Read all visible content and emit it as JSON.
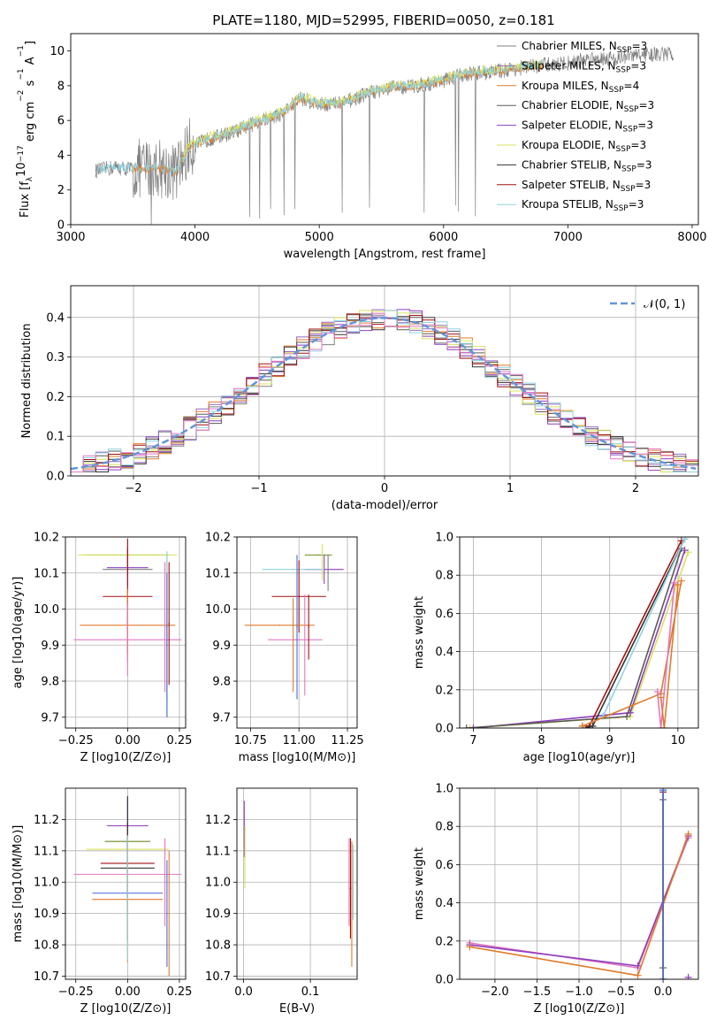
{
  "colors": {
    "Chabrier MILES": "#808080",
    "Salpeter MILES": "#9467bd",
    "Kroupa MILES": "#e07a2a",
    "Chabrier ELODIE": "#5a5a5a",
    "Salpeter ELODIE": "#8e3fbf",
    "Kroupa ELODIE": "#d9e35a",
    "Chabrier STELIB": "#333333",
    "Salpeter STELIB": "#a01010",
    "Kroupa STELIB": "#8fd3e0",
    "extra1": "#e377c2",
    "extra2": "#6b8e23",
    "extra3": "#4a6fd9",
    "gauss": "#6495d8"
  },
  "chart_data": [
    {
      "id": "spectrum",
      "type": "line",
      "title": "PLATE=1180, MJD=52995, FIBERID=0050, z=0.181",
      "xlabel": "wavelength [Angstrom, rest frame]",
      "ylabel_parts": [
        "Flux [f",
        "λ",
        "10",
        "−17",
        " erg cm",
        "−2",
        " s",
        "−1",
        " A",
        "−1",
        "]"
      ],
      "xlim": [
        3000,
        8050
      ],
      "ylim": [
        0,
        11
      ],
      "xticks": [
        3000,
        4000,
        5000,
        6000,
        7000,
        8000
      ],
      "yticks": [
        0,
        2,
        4,
        6,
        8,
        10
      ],
      "legend_position": "top-right",
      "legend": [
        {
          "name": "Chabrier MILES, N",
          "sub": "SSP",
          "tail": "=3",
          "color_key": "Chabrier MILES"
        },
        {
          "name": "Salpeter MILES, N",
          "sub": "SSP",
          "tail": "=3",
          "color_key": "Salpeter MILES"
        },
        {
          "name": "Kroupa MILES, N",
          "sub": "SSP",
          "tail": "=4",
          "color_key": "Kroupa MILES"
        },
        {
          "name": "Chabrier ELODIE, N",
          "sub": "SSP",
          "tail": "=3",
          "color_key": "Chabrier ELODIE"
        },
        {
          "name": "Salpeter ELODIE, N",
          "sub": "SSP",
          "tail": "=3",
          "color_key": "Salpeter ELODIE"
        },
        {
          "name": "Kroupa ELODIE, N",
          "sub": "SSP",
          "tail": "=3",
          "color_key": "Kroupa ELODIE"
        },
        {
          "name": "Chabrier STELIB, N",
          "sub": "SSP",
          "tail": "=3",
          "color_key": "Chabrier STELIB"
        },
        {
          "name": "Salpeter STELIB, N",
          "sub": "SSP",
          "tail": "=3",
          "color_key": "Salpeter STELIB"
        },
        {
          "name": "Kroupa STELIB, N",
          "sub": "SSP",
          "tail": "=3",
          "color_key": "Kroupa STELIB"
        }
      ],
      "continuum": [
        [
          3200,
          3.1
        ],
        [
          3350,
          3.3
        ],
        [
          3500,
          3.2
        ],
        [
          3700,
          3.3
        ],
        [
          3850,
          3.0
        ],
        [
          3950,
          4.4
        ],
        [
          4100,
          4.9
        ],
        [
          4300,
          5.3
        ],
        [
          4500,
          5.9
        ],
        [
          4700,
          6.4
        ],
        [
          4850,
          7.3
        ],
        [
          5000,
          6.9
        ],
        [
          5200,
          7.0
        ],
        [
          5400,
          7.6
        ],
        [
          5600,
          7.9
        ],
        [
          5800,
          8.0
        ],
        [
          6000,
          8.3
        ],
        [
          6200,
          8.7
        ],
        [
          6400,
          8.8
        ],
        [
          6600,
          9.0
        ],
        [
          6800,
          9.2
        ],
        [
          7000,
          9.3
        ],
        [
          7200,
          9.6
        ],
        [
          7400,
          9.6
        ],
        [
          7600,
          9.8
        ],
        [
          7850,
          9.8
        ]
      ]
    },
    {
      "id": "residuals",
      "type": "line",
      "xlabel": "(data-model)/error",
      "ylabel": "Normed distribution",
      "xlim": [
        -2.5,
        2.5
      ],
      "ylim": [
        0,
        0.48
      ],
      "xticks": [
        -2,
        -1,
        0,
        1,
        2
      ],
      "yticks": [
        0.0,
        0.1,
        0.2,
        0.3,
        0.4
      ],
      "grid": true,
      "legend_position": "top-right",
      "gauss_label": "𝒩(0, 1)"
    },
    {
      "id": "age_vs_Z",
      "type": "scatter",
      "xlabel": "Z [log10(Z/Z⊙)]",
      "ylabel": "age  [log10(age/yr)]",
      "xlim": [
        -0.3,
        0.28
      ],
      "ylim": [
        9.67,
        10.2
      ],
      "xticks": [
        -0.25,
        0.0,
        0.25
      ],
      "yticks": [
        9.7,
        9.8,
        9.9,
        10.0,
        10.1,
        10.2
      ],
      "grid": true,
      "points": [
        {
          "x": 0.0,
          "y": 10.15,
          "xerr": 0.2,
          "yerr": 0.02,
          "c": "extra2"
        },
        {
          "x": 0.0,
          "y": 10.15,
          "xerr": 0.24,
          "yerr": 0.01,
          "c": "Kroupa ELODIE"
        },
        {
          "x": 0.0,
          "y": 10.115,
          "xerr": 0.1,
          "yerr": 0.05,
          "c": "Salpeter ELODIE"
        },
        {
          "x": 0.0,
          "y": 10.11,
          "xerr": 0.12,
          "yerr": 0.02,
          "c": "Chabrier MILES"
        },
        {
          "x": 0.0,
          "y": 10.035,
          "xerr": 0.12,
          "yerr": 0.16,
          "c": "Salpeter STELIB"
        },
        {
          "x": 0.0,
          "y": 9.955,
          "xerr": 0.23,
          "yerr": 0.1,
          "c": "Kroupa MILES"
        },
        {
          "x": 0.0,
          "y": 9.915,
          "xerr": 0.26,
          "yerr": 0.1,
          "c": "extra1"
        },
        {
          "x": 0.19,
          "y": 9.95,
          "xerr": 0.0,
          "yerr": 0.2,
          "c": "Kroupa MILES"
        },
        {
          "x": 0.19,
          "y": 9.93,
          "xerr": 0.0,
          "yerr": 0.23,
          "c": "Kroupa STELIB"
        },
        {
          "x": 0.19,
          "y": 9.9,
          "xerr": 0.0,
          "yerr": 0.2,
          "c": "extra3"
        },
        {
          "x": 0.18,
          "y": 9.95,
          "xerr": 0.0,
          "yerr": 0.18,
          "c": "extra1"
        },
        {
          "x": 0.2,
          "y": 9.96,
          "xerr": 0.0,
          "yerr": 0.17,
          "c": "Salpeter STELIB"
        }
      ]
    },
    {
      "id": "age_vs_mass",
      "type": "scatter",
      "xlabel": "mass [log10(M/M⊙)]",
      "ylabel": "",
      "xlim": [
        10.68,
        11.3
      ],
      "ylim": [
        9.67,
        10.2
      ],
      "xticks": [
        10.75,
        11.0,
        11.25
      ],
      "yticks": [
        9.7,
        9.8,
        9.9,
        10.0,
        10.1,
        10.2
      ],
      "grid": true,
      "points": [
        {
          "x": 11.1,
          "y": 10.15,
          "xerr": 0.07,
          "yerr": 0.0,
          "c": "extra2"
        },
        {
          "x": 11.13,
          "y": 10.11,
          "xerr": 0.1,
          "yerr": 0.04,
          "c": "Salpeter ELODIE"
        },
        {
          "x": 10.97,
          "y": 10.11,
          "xerr": 0.16,
          "yerr": 0.0,
          "c": "Kroupa STELIB"
        },
        {
          "x": 11.12,
          "y": 10.13,
          "xerr": 0.0,
          "yerr": 0.05,
          "c": "Kroupa ELODIE"
        },
        {
          "x": 11.0,
          "y": 10.035,
          "xerr": 0.14,
          "yerr": 0.1,
          "c": "Salpeter STELIB"
        },
        {
          "x": 10.9,
          "y": 9.955,
          "xerr": 0.18,
          "yerr": 0.0,
          "c": "Kroupa MILES"
        },
        {
          "x": 10.98,
          "y": 9.915,
          "xerr": 0.14,
          "yerr": 0.0,
          "c": "extra1"
        },
        {
          "x": 10.97,
          "y": 9.9,
          "xerr": 0.0,
          "yerr": 0.13,
          "c": "Kroupa MILES"
        },
        {
          "x": 10.99,
          "y": 9.95,
          "xerr": 0.0,
          "yerr": 0.2,
          "c": "extra3"
        },
        {
          "x": 11.03,
          "y": 9.9,
          "xerr": 0.0,
          "yerr": 0.14,
          "c": "extra1"
        },
        {
          "x": 11.05,
          "y": 9.95,
          "xerr": 0.0,
          "yerr": 0.09,
          "c": "Salpeter STELIB"
        },
        {
          "x": 11.15,
          "y": 10.1,
          "xerr": 0.0,
          "yerr": 0.05,
          "c": "Chabrier MILES"
        }
      ]
    },
    {
      "id": "massweight_vs_age",
      "type": "line",
      "xlabel": "age  [log10(age/yr)]",
      "ylabel": "mass weight",
      "xlim": [
        6.8,
        10.3
      ],
      "ylim": [
        0,
        1.0
      ],
      "xticks": [
        7,
        8,
        9,
        10
      ],
      "yticks": [
        0.0,
        0.2,
        0.4,
        0.6,
        0.8,
        1.0
      ],
      "grid": true,
      "series": [
        {
          "c": "Kroupa ELODIE",
          "pts": [
            [
              6.95,
              0.0
            ],
            [
              9.3,
              0.06
            ],
            [
              10.15,
              0.92
            ]
          ]
        },
        {
          "c": "Salpeter ELODIE",
          "pts": [
            [
              7.0,
              0.0
            ],
            [
              9.3,
              0.08
            ],
            [
              10.1,
              0.93
            ]
          ]
        },
        {
          "c": "Chabrier ELODIE",
          "pts": [
            [
              6.9,
              0.0
            ],
            [
              9.25,
              0.06
            ],
            [
              10.05,
              0.94
            ]
          ]
        },
        {
          "c": "Salpeter STELIB",
          "pts": [
            [
              8.6,
              0.01
            ],
            [
              8.7,
              0.01
            ],
            [
              10.05,
              0.98
            ]
          ]
        },
        {
          "c": "Chabrier STELIB",
          "pts": [
            [
              8.65,
              0.0
            ],
            [
              8.75,
              0.01
            ],
            [
              10.1,
              0.99
            ]
          ]
        },
        {
          "c": "Kroupa STELIB",
          "pts": [
            [
              8.9,
              0.06
            ],
            [
              10.1,
              0.99
            ]
          ]
        },
        {
          "c": "Kroupa MILES",
          "pts": [
            [
              8.6,
              0.01
            ],
            [
              9.75,
              0.18
            ],
            [
              10.05,
              0.77
            ]
          ]
        },
        {
          "c": "extra1",
          "pts": [
            [
              9.7,
              0.19
            ],
            [
              9.75,
              0.0
            ],
            [
              9.95,
              0.76
            ]
          ]
        },
        {
          "c": "Kroupa MILES",
          "pts": [
            [
              9.75,
              0.16
            ],
            [
              9.8,
              0.0
            ],
            [
              10.0,
              0.75
            ]
          ]
        }
      ]
    },
    {
      "id": "mass_vs_Z",
      "type": "scatter",
      "xlabel": "Z [log10(Z/Z⊙)]",
      "ylabel": "mass [log10(M/M⊙)]",
      "xlim": [
        -0.3,
        0.28
      ],
      "ylim": [
        10.69,
        11.3
      ],
      "xticks": [
        -0.25,
        0.0,
        0.25
      ],
      "yticks": [
        10.7,
        10.8,
        10.9,
        11.0,
        11.1,
        11.2
      ],
      "grid": true,
      "points": [
        {
          "x": 0.0,
          "y": 11.18,
          "xerr": 0.1,
          "yerr": 0.09,
          "c": "Salpeter ELODIE"
        },
        {
          "x": 0.0,
          "y": 11.13,
          "xerr": 0.11,
          "yerr": 0.0,
          "c": "extra2"
        },
        {
          "x": 0.0,
          "y": 11.105,
          "xerr": 0.2,
          "yerr": 0.0,
          "c": "Kroupa ELODIE"
        },
        {
          "x": 0.0,
          "y": 11.06,
          "xerr": 0.13,
          "yerr": 0.13,
          "c": "Salpeter STELIB"
        },
        {
          "x": 0.0,
          "y": 11.045,
          "xerr": 0.13,
          "yerr": 0.23,
          "c": "Chabrier STELIB"
        },
        {
          "x": 0.0,
          "y": 11.025,
          "xerr": 0.26,
          "yerr": 0.0,
          "c": "extra1"
        },
        {
          "x": 0.0,
          "y": 10.965,
          "xerr": 0.17,
          "yerr": 0.0,
          "c": "extra3"
        },
        {
          "x": 0.0,
          "y": 10.945,
          "xerr": 0.17,
          "yerr": 0.2,
          "c": "Kroupa MILES"
        },
        {
          "x": 0.0,
          "y": 10.95,
          "xerr": 0.0,
          "yerr": 0.2,
          "c": "Kroupa STELIB"
        },
        {
          "x": 0.18,
          "y": 11.0,
          "xerr": 0.0,
          "yerr": 0.14,
          "c": "extra1"
        },
        {
          "x": 0.19,
          "y": 10.9,
          "xerr": 0.0,
          "yerr": 0.17,
          "c": "extra3"
        },
        {
          "x": 0.2,
          "y": 10.9,
          "xerr": 0.0,
          "yerr": 0.2,
          "c": "Kroupa MILES"
        }
      ]
    },
    {
      "id": "mass_vs_ebv",
      "type": "scatter",
      "xlabel": "E(B-V)",
      "ylabel": "",
      "xlim": [
        -0.01,
        0.17
      ],
      "ylim": [
        10.69,
        11.3
      ],
      "xticks": [
        0.0,
        0.1
      ],
      "yticks": [
        10.7,
        10.8,
        10.9,
        11.0,
        11.1,
        11.2
      ],
      "grid": true,
      "points": [
        {
          "x": 0.001,
          "y": 11.17,
          "xerr": 0.0,
          "yerr": 0.09,
          "c": "Salpeter ELODIE"
        },
        {
          "x": 0.002,
          "y": 11.08,
          "xerr": 0.0,
          "yerr": 0.1,
          "c": "Kroupa ELODIE"
        },
        {
          "x": 0.158,
          "y": 11.0,
          "xerr": 0.0,
          "yerr": 0.14,
          "c": "extra1"
        },
        {
          "x": 0.16,
          "y": 10.98,
          "xerr": 0.0,
          "yerr": 0.16,
          "c": "Salpeter STELIB"
        },
        {
          "x": 0.162,
          "y": 10.93,
          "xerr": 0.0,
          "yerr": 0.2,
          "c": "Kroupa MILES"
        },
        {
          "x": 0.164,
          "y": 11.0,
          "xerr": 0.0,
          "yerr": 0.12,
          "c": "Kroupa STELIB"
        }
      ]
    },
    {
      "id": "massweight_vs_Z",
      "type": "line",
      "xlabel": "Z [log10(Z/Z⊙)]",
      "ylabel": "mass weight",
      "xlim": [
        -2.42,
        0.42
      ],
      "ylim": [
        0,
        1.0
      ],
      "xticks": [
        -2.0,
        -1.5,
        -1.0,
        -0.5,
        0.0
      ],
      "yticks": [
        0.0,
        0.2,
        0.4,
        0.6,
        0.8,
        1.0
      ],
      "grid": true,
      "series": [
        {
          "c": "extra1",
          "pts": [
            [
              -2.3,
              0.19
            ],
            [
              -0.3,
              0.06
            ],
            [
              0.3,
              0.74
            ]
          ]
        },
        {
          "c": "Salpeter ELODIE",
          "pts": [
            [
              -2.3,
              0.18
            ],
            [
              -0.3,
              0.07
            ],
            [
              0.3,
              0.75
            ]
          ]
        },
        {
          "c": "Kroupa MILES",
          "pts": [
            [
              -2.3,
              0.17
            ],
            [
              -0.3,
              0.02
            ],
            [
              0.3,
              0.76
            ]
          ]
        },
        {
          "c": "Kroupa STELIB",
          "pts": [
            [
              0.0,
              0.0
            ],
            [
              0.0,
              0.99
            ]
          ]
        },
        {
          "c": "Chabrier ELODIE",
          "pts": [
            [
              0.0,
              0.06
            ],
            [
              0.0,
              0.94
            ]
          ]
        },
        {
          "c": "Salpeter STELIB",
          "pts": [
            [
              0.0,
              0.0
            ],
            [
              0.0,
              0.98
            ]
          ]
        },
        {
          "c": "extra3",
          "pts": [
            [
              0.0,
              0.0
            ],
            [
              0.0,
              0.99
            ]
          ]
        },
        {
          "c": "Salpeter ELODIE",
          "pts": [
            [
              0.3,
              0.01
            ]
          ]
        }
      ]
    }
  ]
}
